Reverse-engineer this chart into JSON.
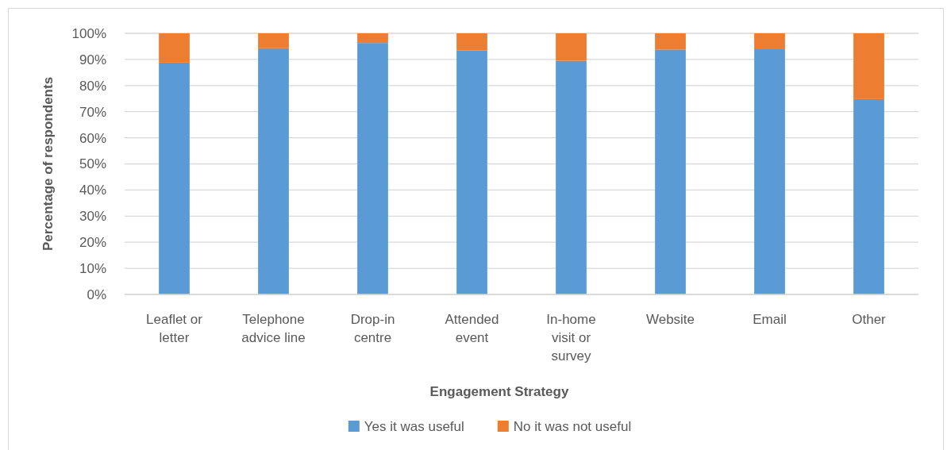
{
  "chart_data": {
    "type": "bar",
    "stacked": true,
    "categories": [
      "Leaflet or letter",
      "Telephone advice line",
      "Drop-in centre",
      "Attended event",
      "In-home visit or survey",
      "Website",
      "Email",
      "Other"
    ],
    "series": [
      {
        "name": "Yes it was useful",
        "color": "#5b9bd5",
        "values": [
          88.8,
          94.3,
          96.3,
          93.5,
          89.5,
          93.8,
          94.2,
          74.8
        ]
      },
      {
        "name": "No it was not useful",
        "color": "#ed7d31",
        "values": [
          11.2,
          5.7,
          3.7,
          6.5,
          10.5,
          6.2,
          5.8,
          25.2
        ]
      }
    ],
    "xlabel": "Engagement Strategy",
    "ylabel": "Percentage of respondents",
    "ylim": [
      0,
      100
    ],
    "yticks": [
      {
        "value": 0,
        "label": "0%"
      },
      {
        "value": 10,
        "label": "10%"
      },
      {
        "value": 20,
        "label": "20%"
      },
      {
        "value": 30,
        "label": "30%"
      },
      {
        "value": 40,
        "label": "40%"
      },
      {
        "value": 50,
        "label": "50%"
      },
      {
        "value": 60,
        "label": "60%"
      },
      {
        "value": 70,
        "label": "70%"
      },
      {
        "value": 80,
        "label": "80%"
      },
      {
        "value": 90,
        "label": "90%"
      },
      {
        "value": 100,
        "label": "100%"
      }
    ],
    "grid": "y",
    "legend": "bottom"
  }
}
